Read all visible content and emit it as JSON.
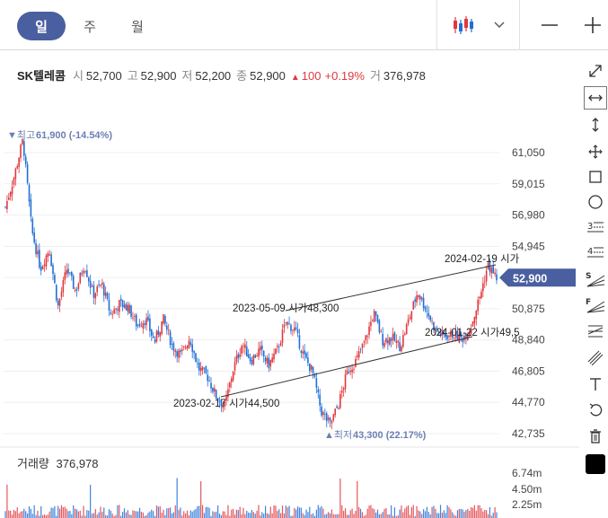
{
  "period_tabs": [
    {
      "label": "일",
      "active": true
    },
    {
      "label": "주",
      "active": false
    },
    {
      "label": "월",
      "active": false
    }
  ],
  "header": {
    "chart_type_icon": "candlestick-icon",
    "dropdown_icon": "chevron-down-icon",
    "zoom_out_icon": "minus-icon",
    "zoom_in_icon": "plus-icon"
  },
  "quote": {
    "name": "SK텔레콤",
    "open_label": "시",
    "open": "52,700",
    "high_label": "고",
    "high": "52,900",
    "low_label": "저",
    "low": "52,200",
    "close_label": "종",
    "close": "52,900",
    "change_arrow": "▲",
    "change": "100",
    "change_pct": "+0.19%",
    "volume_label": "거",
    "volume": "376,978"
  },
  "tools": [
    {
      "icon": "expand-diagonal-icon",
      "selected": false
    },
    {
      "icon": "horizontal-arrows-icon",
      "selected": true
    },
    {
      "icon": "vertical-arrows-icon",
      "selected": false
    },
    {
      "icon": "move-cross-icon",
      "selected": false
    },
    {
      "icon": "rectangle-icon",
      "selected": false
    },
    {
      "icon": "circle-icon",
      "selected": false
    },
    {
      "icon": "fibonacci-3-icon",
      "selected": false
    },
    {
      "icon": "fibonacci-4-icon",
      "selected": false
    },
    {
      "icon": "speed-line-s-icon",
      "selected": false
    },
    {
      "icon": "speed-line-f-icon",
      "selected": false
    },
    {
      "icon": "channel-lines-icon",
      "selected": false
    },
    {
      "icon": "parallel-lines-icon",
      "selected": false
    },
    {
      "icon": "text-tool-icon",
      "selected": false
    },
    {
      "icon": "undo-icon",
      "selected": false
    },
    {
      "icon": "trash-icon",
      "selected": false
    },
    {
      "icon": "color-swatch-icon",
      "selected": false,
      "color": "#000000"
    }
  ],
  "colors": {
    "up": "#e0383e",
    "down": "#1f6fd6",
    "accent": "#4a5fa0",
    "annotation": "#6b7fb3"
  },
  "chart_data": {
    "type": "candlestick",
    "y_ticks": [
      "61,050",
      "59,015",
      "56,980",
      "54,945",
      "52,910",
      "50,875",
      "48,840",
      "46,805",
      "44,770",
      "42,735"
    ],
    "ylim": [
      42735,
      61050
    ],
    "x_range": [
      "2022",
      "2024-02"
    ],
    "current_price": {
      "label": "52,900",
      "value": 52900
    },
    "high_marker": {
      "label": "▼최고",
      "value_text": "61,900 (-14.54%)",
      "value": 61900
    },
    "low_marker": {
      "label": "▲최저",
      "value_text": "43,300 (22.17%)",
      "value": 43300
    },
    "trend_lines": [
      {
        "date": "2023-02-17",
        "label": "시가44,500",
        "value": 44500,
        "end_label": "2024-01-22 시가49,5",
        "end_value": 49500
      },
      {
        "date": "2023-05-09",
        "label": "시가48,300",
        "value": 48300,
        "end_label": "2024-02-19 시가",
        "end_value": 54000
      }
    ],
    "price_path": [
      [
        0,
        57500
      ],
      [
        1,
        59500
      ],
      [
        2,
        61900
      ],
      [
        3,
        56000
      ],
      [
        4,
        53500
      ],
      [
        5,
        54800
      ],
      [
        6,
        51000
      ],
      [
        7,
        53500
      ],
      [
        8,
        52000
      ],
      [
        9,
        53800
      ],
      [
        10,
        51800
      ],
      [
        11,
        52500
      ],
      [
        12,
        50500
      ],
      [
        13,
        51200
      ],
      [
        14,
        51000
      ],
      [
        15,
        49800
      ],
      [
        16,
        50200
      ],
      [
        17,
        48700
      ],
      [
        18,
        50200
      ],
      [
        19,
        48500
      ],
      [
        20,
        47800
      ],
      [
        21,
        49000
      ],
      [
        22,
        47000
      ],
      [
        23,
        46500
      ],
      [
        24,
        45200
      ],
      [
        25,
        44500
      ],
      [
        26,
        47000
      ],
      [
        27,
        48600
      ],
      [
        28,
        47500
      ],
      [
        29,
        48200
      ],
      [
        30,
        47200
      ],
      [
        31,
        48200
      ],
      [
        32,
        50000
      ],
      [
        33,
        49500
      ],
      [
        34,
        47800
      ],
      [
        35,
        46800
      ],
      [
        36,
        44200
      ],
      [
        37,
        43300
      ],
      [
        38,
        44700
      ],
      [
        39,
        46800
      ],
      [
        40,
        47500
      ],
      [
        41,
        48800
      ],
      [
        42,
        50600
      ],
      [
        43,
        48800
      ],
      [
        44,
        49000
      ],
      [
        45,
        48400
      ],
      [
        46,
        50200
      ],
      [
        47,
        52000
      ],
      [
        48,
        50800
      ],
      [
        49,
        49500
      ],
      [
        50,
        49100
      ],
      [
        51,
        49200
      ],
      [
        52,
        48900
      ],
      [
        53,
        49600
      ],
      [
        54,
        51500
      ],
      [
        55,
        53700
      ],
      [
        56,
        52900
      ]
    ],
    "volume": {
      "title": "거래량",
      "value": "376,978",
      "y_ticks": [
        "6.74m",
        "4.50m",
        "2.25m"
      ],
      "ylim": [
        0,
        6740000
      ]
    }
  }
}
